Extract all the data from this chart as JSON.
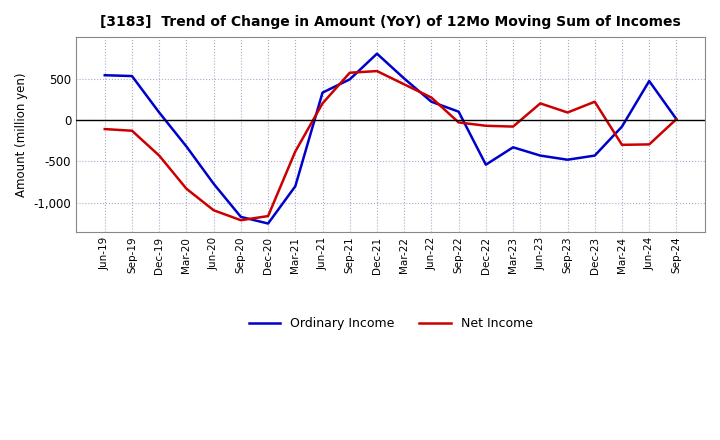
{
  "title": "[3183]  Trend of Change in Amount (YoY) of 12Mo Moving Sum of Incomes",
  "ylabel": "Amount (million yen)",
  "x_labels": [
    "Jun-19",
    "Sep-19",
    "Dec-19",
    "Mar-20",
    "Jun-20",
    "Sep-20",
    "Dec-20",
    "Mar-21",
    "Jun-21",
    "Sep-21",
    "Dec-21",
    "Mar-22",
    "Jun-22",
    "Sep-22",
    "Dec-22",
    "Mar-23",
    "Jun-23",
    "Sep-23",
    "Dec-23",
    "Mar-24",
    "Jun-24",
    "Sep-24"
  ],
  "ordinary_income": [
    540,
    530,
    90,
    -320,
    -770,
    -1170,
    -1250,
    -800,
    330,
    490,
    800,
    500,
    220,
    100,
    -540,
    -330,
    -430,
    -480,
    -430,
    -80,
    470,
    10
  ],
  "net_income": [
    -110,
    -130,
    -430,
    -830,
    -1090,
    -1210,
    -1160,
    -380,
    200,
    570,
    590,
    430,
    270,
    -30,
    -70,
    -80,
    200,
    90,
    220,
    -300,
    -295,
    10
  ],
  "ordinary_color": "#0000CC",
  "net_color": "#CC0000",
  "ylim": [
    -1350,
    1000
  ],
  "yticks": [
    -1000,
    -500,
    0,
    500
  ],
  "background_color": "#FFFFFF",
  "plot_bg_color": "#FFFFFF",
  "grid_color": "#AAAACC",
  "legend_labels": [
    "Ordinary Income",
    "Net Income"
  ]
}
